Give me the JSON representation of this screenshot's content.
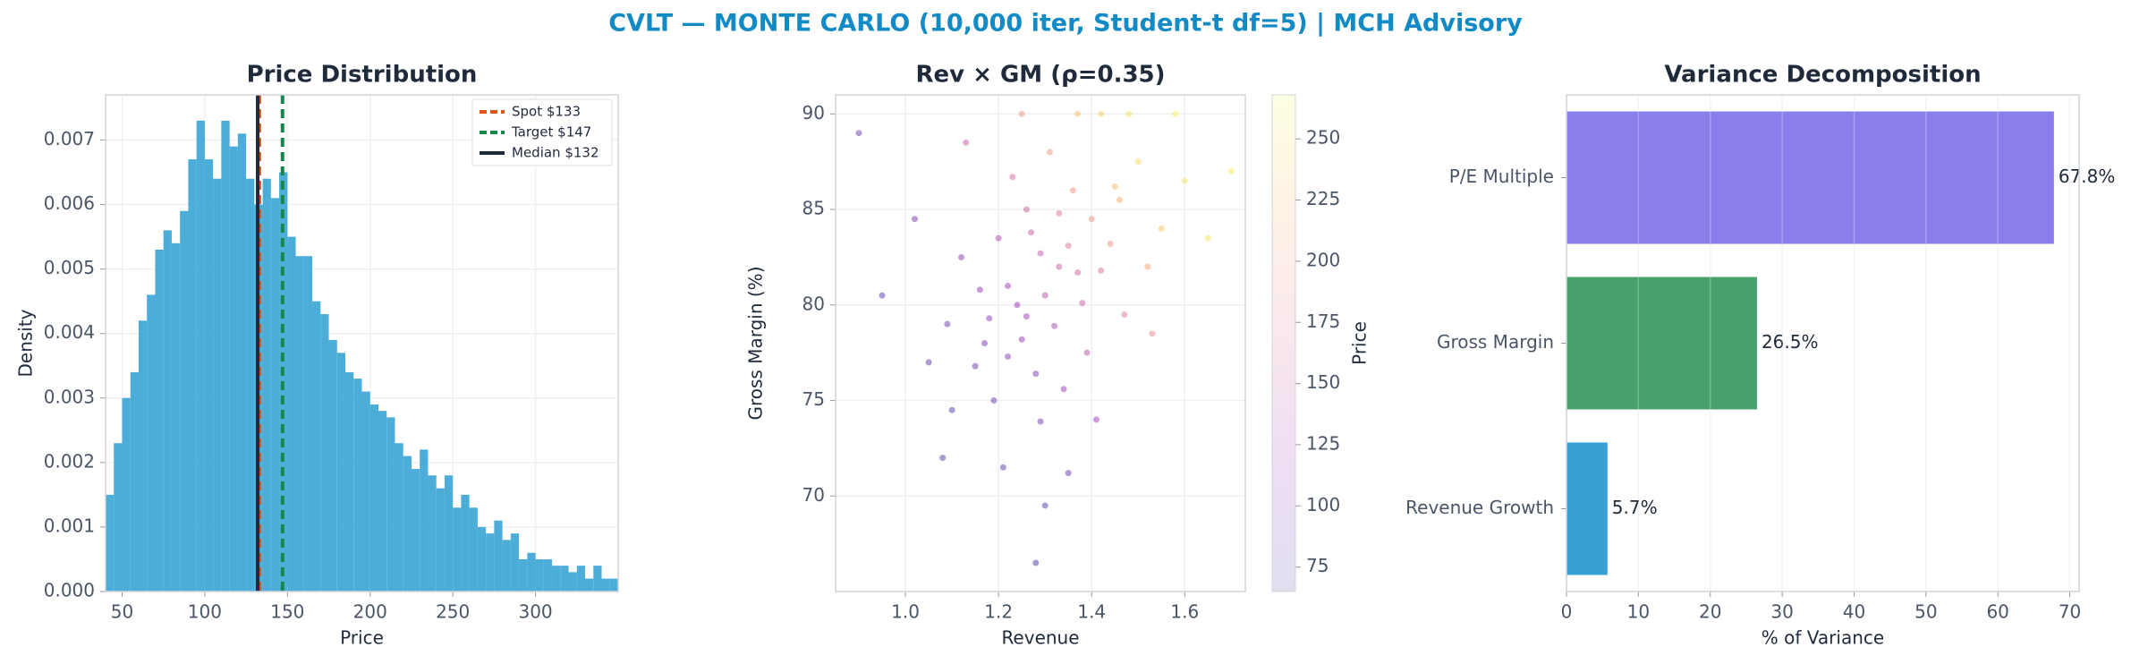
{
  "suptitle": "CVLT — MONTE CARLO (10,000 iter, Student-t df=5) | MCH Advisory",
  "chart_data": [
    {
      "type": "histogram",
      "title": "Price Distribution",
      "xlabel": "Price",
      "ylabel": "Density",
      "color": "#4badd8",
      "grid": true,
      "bins": [
        40,
        45,
        50,
        55,
        60,
        65,
        70,
        75,
        80,
        85,
        90,
        95,
        100,
        105,
        110,
        115,
        120,
        125,
        130,
        135,
        140,
        145,
        150,
        155,
        160,
        165,
        170,
        175,
        180,
        185,
        190,
        195,
        200,
        205,
        210,
        215,
        220,
        225,
        230,
        235,
        240,
        245,
        250,
        255,
        260,
        265,
        270,
        275,
        280,
        285,
        290,
        295,
        300,
        305,
        310,
        315,
        320,
        325,
        330,
        335,
        340,
        345,
        350
      ],
      "counts": [
        0.0015,
        0.0023,
        0.003,
        0.0034,
        0.0042,
        0.0046,
        0.0053,
        0.0056,
        0.0054,
        0.0059,
        0.0067,
        0.0073,
        0.0067,
        0.0064,
        0.0073,
        0.0069,
        0.0071,
        0.0064,
        0.006,
        0.0064,
        0.0061,
        0.0065,
        0.0055,
        0.0052,
        0.0052,
        0.0045,
        0.0043,
        0.0039,
        0.0037,
        0.0034,
        0.0033,
        0.0031,
        0.0029,
        0.0028,
        0.0027,
        0.0023,
        0.0021,
        0.0019,
        0.0022,
        0.0018,
        0.0016,
        0.0018,
        0.0013,
        0.0015,
        0.0013,
        0.001,
        0.0009,
        0.0011,
        0.0008,
        0.0009,
        0.0005,
        0.0006,
        0.0005,
        0.0005,
        0.0004,
        0.0004,
        0.0003,
        0.0004,
        0.0002,
        0.0004,
        0.0002,
        0.0002
      ],
      "xlim": [
        40,
        350
      ],
      "xticks": [
        50,
        100,
        150,
        200,
        250,
        300
      ],
      "ylim": [
        0,
        0.0077
      ],
      "yticks": [
        {
          "value": 0,
          "label": "0.000"
        },
        {
          "value": 0.001,
          "label": "0.001"
        },
        {
          "value": 0.002,
          "label": "0.002"
        },
        {
          "value": 0.003,
          "label": "0.003"
        },
        {
          "value": 0.004,
          "label": "0.004"
        },
        {
          "value": 0.005,
          "label": "0.005"
        },
        {
          "value": 0.006,
          "label": "0.006"
        },
        {
          "value": 0.007,
          "label": "0.007"
        }
      ],
      "lines": [
        {
          "label": "Spot $133",
          "value": 133,
          "color": "#e0521a",
          "style": "dashed"
        },
        {
          "label": "Target $147",
          "value": 147,
          "color": "#17884a",
          "style": "dashed"
        },
        {
          "label": "Median $132",
          "value": 132,
          "color": "#1f2a3a",
          "style": "solid"
        }
      ],
      "legend": "upper right"
    },
    {
      "type": "scatter",
      "title": "Rev × GM (ρ=0.35)",
      "xlabel": "Revenue",
      "ylabel": "Gross Margin (%)",
      "cmap": "plasma",
      "grid": true,
      "x": [
        1.3,
        1.25,
        1.35,
        1.22,
        1.28,
        1.4,
        1.18,
        1.33,
        1.26,
        1.45,
        1.15,
        1.38,
        1.2,
        1.32,
        1.5,
        1.1,
        1.42,
        1.24,
        1.36,
        1.29,
        1.05,
        1.55,
        1.21,
        1.47,
        1.12,
        1.31,
        1.27,
        1.39,
        1.16,
        1.44,
        1.34,
        1.23,
        1.6,
        0.95,
        1.08,
        1.37,
        1.48,
        1.58,
        1.25,
        1.42,
        1.3,
        1.19,
        1.52,
        1.02,
        1.35,
        1.28,
        1.65,
        1.13,
        1.41,
        1.17,
        1.33,
        1.26,
        1.22,
        1.46,
        1.09,
        1.53,
        1.37,
        0.9,
        1.7,
        1.29
      ],
      "y": [
        80.5,
        78.2,
        83.1,
        81.0,
        76.4,
        84.5,
        79.3,
        82.0,
        85.0,
        86.2,
        76.8,
        80.1,
        83.5,
        78.9,
        87.5,
        74.5,
        81.8,
        80.0,
        86.0,
        73.9,
        77.0,
        84.0,
        71.5,
        79.5,
        82.5,
        88.0,
        83.8,
        77.5,
        80.8,
        83.2,
        75.6,
        86.7,
        86.5,
        80.5,
        72.0,
        90.0,
        90.0,
        90.0,
        90.0,
        90.0,
        69.5,
        75.0,
        82.0,
        84.5,
        71.2,
        66.5,
        83.5,
        88.5,
        74.0,
        78.0,
        84.8,
        79.4,
        77.3,
        85.5,
        79.0,
        78.5,
        81.7,
        89.0,
        87.0,
        82.7
      ],
      "c": [
        140,
        115,
        170,
        120,
        100,
        195,
        105,
        150,
        155,
        225,
        88,
        150,
        130,
        125,
        245,
        78,
        170,
        115,
        195,
        92,
        82,
        230,
        80,
        175,
        105,
        200,
        150,
        140,
        108,
        195,
        115,
        160,
        255,
        80,
        72,
        230,
        250,
        262,
        200,
        240,
        78,
        88,
        210,
        100,
        90,
        70,
        255,
        150,
        120,
        98,
        175,
        120,
        102,
        215,
        90,
        190,
        160,
        90,
        260,
        145
      ],
      "xlim": [
        0.85,
        1.73
      ],
      "xticks": [
        {
          "value": 1.0,
          "label": "1.0"
        },
        {
          "value": 1.2,
          "label": "1.2"
        },
        {
          "value": 1.4,
          "label": "1.4"
        },
        {
          "value": 1.6,
          "label": "1.6"
        }
      ],
      "ylim": [
        65,
        91
      ],
      "yticks": [
        70,
        75,
        80,
        85,
        90
      ],
      "colorbar": {
        "label": "Price",
        "lim": [
          65,
          268
        ],
        "ticks": [
          75,
          100,
          125,
          150,
          175,
          200,
          225,
          250
        ]
      }
    },
    {
      "type": "barh",
      "title": "Variance Decomposition",
      "xlabel": "% of Variance",
      "grid": true,
      "categories": [
        "P/E Multiple",
        "Gross Margin",
        "Revenue Growth"
      ],
      "values": [
        67.8,
        26.5,
        5.7
      ],
      "value_labels": [
        "67.8%",
        "26.5%",
        "5.7%"
      ],
      "colors": [
        "#8a7fea",
        "#48a06d",
        "#37a1d4"
      ],
      "xlim": [
        0,
        71.3
      ],
      "xticks": [
        0,
        10,
        20,
        30,
        40,
        50,
        60,
        70
      ]
    }
  ]
}
